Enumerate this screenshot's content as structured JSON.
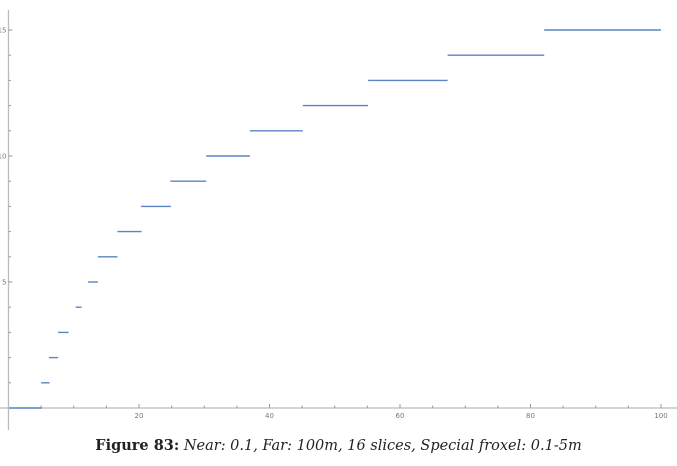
{
  "chart_data": {
    "type": "line",
    "style": "step",
    "title": "",
    "xlabel": "",
    "ylabel": "",
    "xlim": [
      0,
      100
    ],
    "ylim": [
      0,
      15.5
    ],
    "x_ticks": [
      20,
      40,
      60,
      80,
      100
    ],
    "y_ticks": [
      5,
      10,
      15
    ],
    "grid": false,
    "line_color": "#5b84c4",
    "segments": [
      {
        "y": 0,
        "x_start": 0.1,
        "x_end": 5.1
      },
      {
        "y": 1,
        "x_start": 5.0,
        "x_end": 6.3
      },
      {
        "y": 2,
        "x_start": 6.2,
        "x_end": 7.6
      },
      {
        "y": 3,
        "x_start": 7.6,
        "x_end": 9.2
      },
      {
        "y": 4,
        "x_start": 10.3,
        "x_end": 11.2
      },
      {
        "y": 5,
        "x_start": 12.2,
        "x_end": 13.7
      },
      {
        "y": 6,
        "x_start": 13.7,
        "x_end": 16.7
      },
      {
        "y": 7,
        "x_start": 16.7,
        "x_end": 20.4
      },
      {
        "y": 8,
        "x_start": 20.3,
        "x_end": 24.9
      },
      {
        "y": 9,
        "x_start": 24.8,
        "x_end": 30.3
      },
      {
        "y": 10,
        "x_start": 30.3,
        "x_end": 37.0
      },
      {
        "y": 11,
        "x_start": 37.0,
        "x_end": 45.1
      },
      {
        "y": 12,
        "x_start": 45.1,
        "x_end": 55.1
      },
      {
        "y": 13,
        "x_start": 55.1,
        "x_end": 67.3
      },
      {
        "y": 14,
        "x_start": 67.3,
        "x_end": 82.1
      },
      {
        "y": 15,
        "x_start": 82.1,
        "x_end": 100
      }
    ]
  },
  "caption": {
    "label": "Figure 83:",
    "text": " Near: 0.1, Far: 100m, 16 slices, Special froxel: 0.1-5m"
  }
}
